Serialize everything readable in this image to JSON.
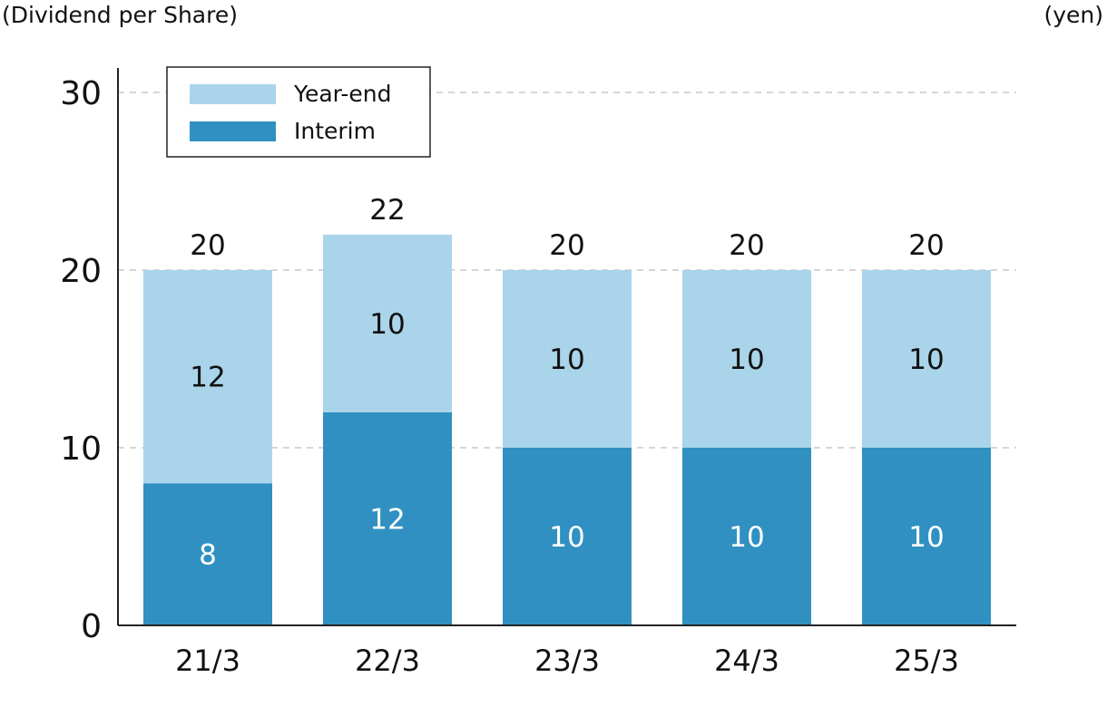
{
  "chart_data": {
    "type": "bar",
    "stacked": true,
    "ylabel": "(Dividend per Share)",
    "unit": "(yen)",
    "categories": [
      "21/3",
      "22/3",
      "23/3",
      "24/3",
      "25/3"
    ],
    "series": [
      {
        "name": "Interim",
        "values": [
          8,
          12,
          10,
          10,
          10
        ],
        "color": "#3090c2"
      },
      {
        "name": "Year-end",
        "values": [
          12,
          10,
          10,
          10,
          10
        ],
        "color": "#a9d4ea"
      }
    ],
    "totals": [
      20,
      22,
      20,
      20,
      20
    ],
    "ylim": [
      0,
      30
    ],
    "yticks": [
      0,
      10,
      20,
      30
    ],
    "grid": true,
    "legend_position": "top-left"
  }
}
